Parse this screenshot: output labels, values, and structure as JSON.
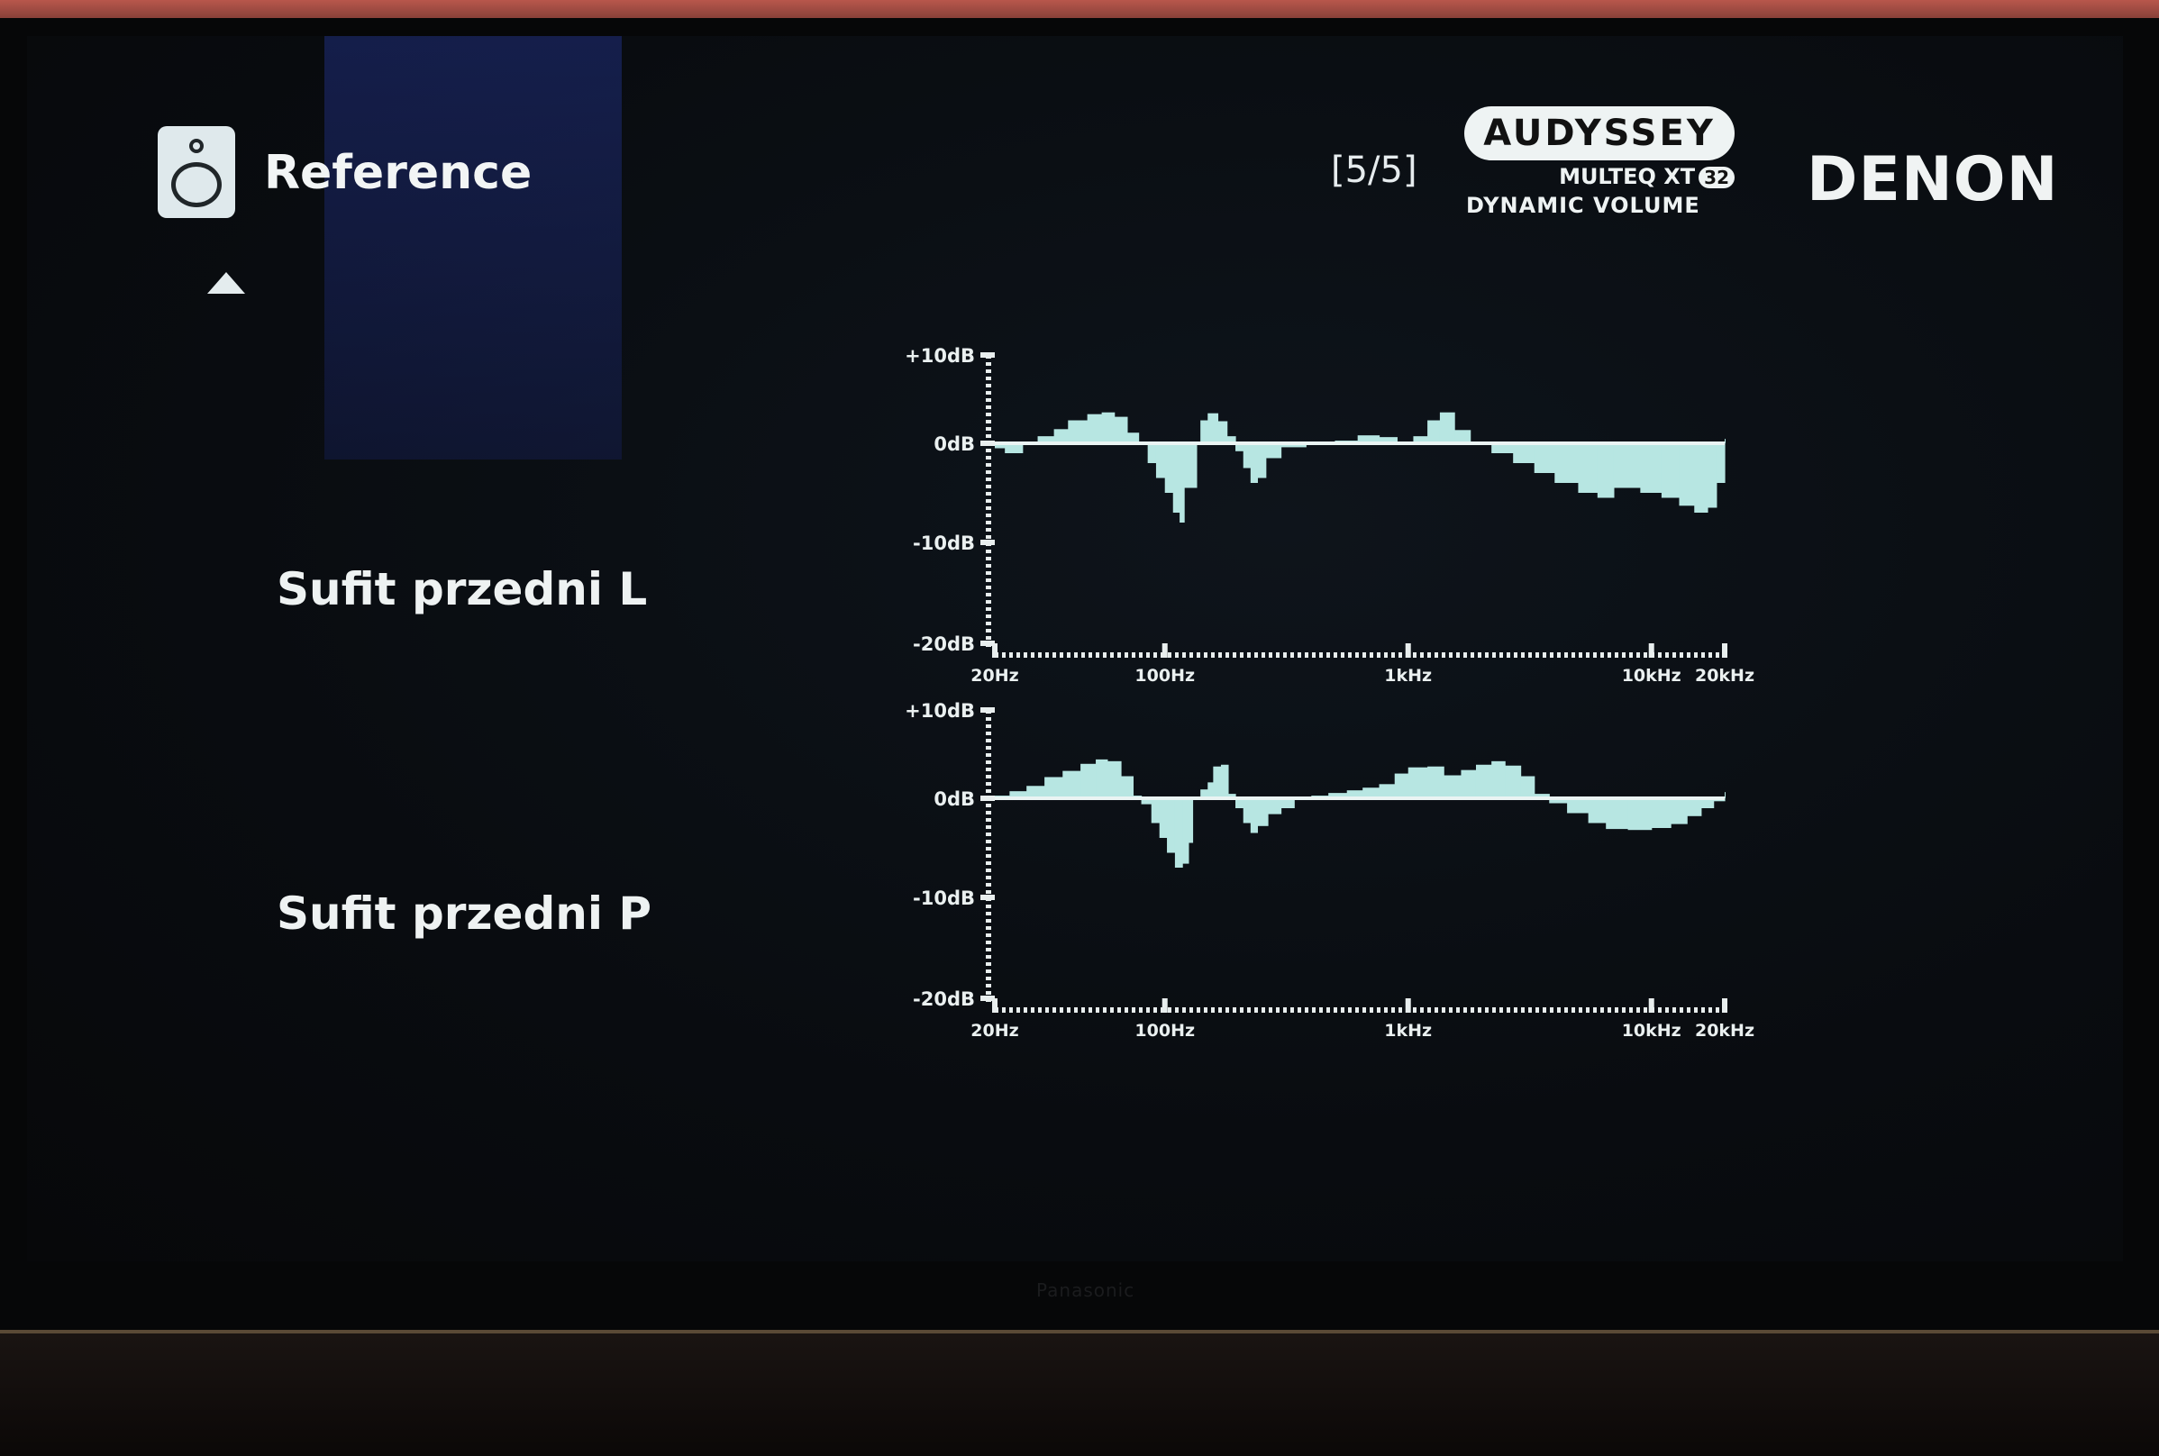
{
  "header": {
    "title": "Reference",
    "page_indicator": "[5/5]",
    "audyssey": {
      "logo_text": "AUDYSSEY",
      "line1": "MULTEQ XT",
      "badge": "32",
      "line2": "DYNAMIC VOLUME"
    },
    "brand": "DENON"
  },
  "tv": {
    "brand": "Panasonic"
  },
  "colors": {
    "response_fill": "#b7e6e2",
    "axis": "#e8eeee",
    "text": "#f0f4f4"
  },
  "icons": {
    "speaker": "speaker-icon",
    "scroll_up": "triangle-up-icon"
  },
  "chart_data": [
    {
      "type": "area",
      "name": "Sufit przedni L",
      "xscale": "log",
      "xlim": [
        20,
        20000
      ],
      "ylim": [
        -20,
        10
      ],
      "yticks": [
        "+10dB",
        "0dB",
        "-10dB",
        "-20dB"
      ],
      "xticks": [
        "20Hz",
        "100Hz",
        "1kHz",
        "10kHz",
        "20kHz"
      ],
      "points": [
        [
          20,
          -0.5
        ],
        [
          22,
          -1
        ],
        [
          26,
          0
        ],
        [
          30,
          0.8
        ],
        [
          35,
          1.6
        ],
        [
          40,
          2.6
        ],
        [
          48,
          3.3
        ],
        [
          55,
          3.5
        ],
        [
          62,
          3
        ],
        [
          70,
          1.2
        ],
        [
          78,
          0
        ],
        [
          85,
          -2
        ],
        [
          92,
          -3.5
        ],
        [
          100,
          -5
        ],
        [
          108,
          -7
        ],
        [
          115,
          -8
        ],
        [
          120,
          -4.5
        ],
        [
          135,
          0
        ],
        [
          140,
          2.6
        ],
        [
          150,
          3.4
        ],
        [
          165,
          2.5
        ],
        [
          180,
          0.8
        ],
        [
          195,
          -0.8
        ],
        [
          210,
          -2.5
        ],
        [
          225,
          -4
        ],
        [
          240,
          -3.5
        ],
        [
          260,
          -1.5
        ],
        [
          300,
          -0.4
        ],
        [
          380,
          0
        ],
        [
          500,
          0.3
        ],
        [
          620,
          0.9
        ],
        [
          760,
          0.7
        ],
        [
          900,
          0
        ],
        [
          1050,
          0.8
        ],
        [
          1200,
          2.6
        ],
        [
          1350,
          3.5
        ],
        [
          1550,
          1.5
        ],
        [
          1800,
          0
        ],
        [
          2200,
          -1
        ],
        [
          2700,
          -2
        ],
        [
          3300,
          -3
        ],
        [
          4000,
          -4
        ],
        [
          5000,
          -5
        ],
        [
          6000,
          -5.5
        ],
        [
          7000,
          -4.5
        ],
        [
          9000,
          -5
        ],
        [
          11000,
          -5.5
        ],
        [
          13000,
          -6.3
        ],
        [
          15000,
          -7
        ],
        [
          17000,
          -6.5
        ],
        [
          18500,
          -4
        ],
        [
          20000,
          0.5
        ]
      ]
    },
    {
      "type": "area",
      "name": "Sufit przedni P",
      "xscale": "log",
      "xlim": [
        20,
        20000
      ],
      "ylim": [
        -20,
        10
      ],
      "yticks": [
        "+10dB",
        "0dB",
        "-10dB",
        "-20dB"
      ],
      "xticks": [
        "20Hz",
        "100Hz",
        "1kHz",
        "10kHz",
        "20kHz"
      ],
      "points": [
        [
          20,
          0.3
        ],
        [
          23,
          0.8
        ],
        [
          27,
          1.4
        ],
        [
          32,
          2.4
        ],
        [
          38,
          3.1
        ],
        [
          45,
          3.9
        ],
        [
          52,
          4.4
        ],
        [
          58,
          4.2
        ],
        [
          66,
          2.5
        ],
        [
          74,
          0.3
        ],
        [
          80,
          -0.6
        ],
        [
          88,
          -2.5
        ],
        [
          95,
          -4
        ],
        [
          102,
          -5.5
        ],
        [
          110,
          -7
        ],
        [
          118,
          -6.6
        ],
        [
          125,
          -4.5
        ],
        [
          130,
          0
        ],
        [
          140,
          1
        ],
        [
          150,
          1.8
        ],
        [
          158,
          3.6
        ],
        [
          170,
          3.8
        ],
        [
          182,
          0.5
        ],
        [
          195,
          -1
        ],
        [
          210,
          -2.5
        ],
        [
          225,
          -3.5
        ],
        [
          240,
          -2.8
        ],
        [
          265,
          -1.6
        ],
        [
          300,
          -1
        ],
        [
          340,
          0
        ],
        [
          400,
          0.3
        ],
        [
          470,
          0.6
        ],
        [
          560,
          0.9
        ],
        [
          650,
          1.2
        ],
        [
          760,
          1.6
        ],
        [
          880,
          2.8
        ],
        [
          1000,
          3.5
        ],
        [
          1200,
          3.6
        ],
        [
          1400,
          2.6
        ],
        [
          1650,
          3.2
        ],
        [
          1900,
          3.8
        ],
        [
          2200,
          4.2
        ],
        [
          2500,
          3.7
        ],
        [
          2900,
          2.5
        ],
        [
          3300,
          0.5
        ],
        [
          3800,
          -0.5
        ],
        [
          4500,
          -1.5
        ],
        [
          5500,
          -2.5
        ],
        [
          6500,
          -3.1
        ],
        [
          8000,
          -3.2
        ],
        [
          10000,
          -3
        ],
        [
          12000,
          -2.6
        ],
        [
          14000,
          -1.8
        ],
        [
          16000,
          -1
        ],
        [
          18000,
          -0.3
        ],
        [
          20000,
          0.7
        ]
      ]
    }
  ],
  "channels": [
    {
      "label": "Sufit przedni L"
    },
    {
      "label": "Sufit przedni P"
    }
  ]
}
